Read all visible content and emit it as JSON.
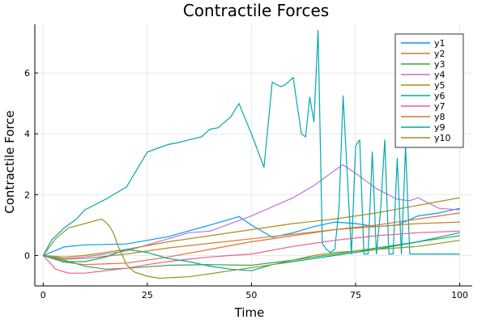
{
  "colors": {
    "y1": "#009af9",
    "y2": "#e26f46",
    "y3": "#3da44d",
    "y4": "#c271d2",
    "y5": "#ac8e18",
    "y6": "#00a9ad",
    "y7": "#ed5e93",
    "y8": "#c68225",
    "y9": "#00a98d",
    "y10": "#8e971e"
  },
  "chart_data": {
    "type": "line",
    "title": "Contractile Forces",
    "xlabel": "Time",
    "ylabel": "Contractile Force",
    "xlim": [
      -2,
      103
    ],
    "ylim": [
      -1.0,
      7.6
    ],
    "xticks": [
      0,
      25,
      50,
      75,
      100
    ],
    "yticks": [
      0,
      2,
      4,
      6
    ],
    "grid": true,
    "legend_position": "top-right",
    "series": [
      {
        "name": "y1",
        "color": "#009af9",
        "x": [
          0,
          5,
          10,
          20,
          30,
          40,
          47,
          50,
          55,
          60,
          65,
          70,
          75,
          80,
          85,
          90,
          95,
          100
        ],
        "y": [
          0,
          0.28,
          0.35,
          0.38,
          0.62,
          1.0,
          1.28,
          1.0,
          0.6,
          0.75,
          0.95,
          1.1,
          1.05,
          0.95,
          1.0,
          1.3,
          1.4,
          1.55
        ]
      },
      {
        "name": "y2",
        "color": "#e26f46",
        "x": [
          0,
          5,
          10,
          20,
          30,
          40,
          50,
          60,
          70,
          80,
          90,
          100
        ],
        "y": [
          0,
          -0.22,
          -0.3,
          -0.25,
          -0.05,
          0.2,
          0.45,
          0.65,
          0.85,
          1.0,
          1.2,
          1.4
        ]
      },
      {
        "name": "y3",
        "color": "#3da44d",
        "x": [
          0,
          5,
          10,
          15,
          20,
          30,
          40,
          50,
          60,
          70,
          80,
          90,
          95,
          100
        ],
        "y": [
          0,
          -0.15,
          -0.35,
          -0.45,
          -0.42,
          -0.32,
          -0.3,
          -0.32,
          -0.15,
          0.05,
          0.25,
          0.45,
          0.55,
          0.65
        ]
      },
      {
        "name": "y4",
        "color": "#c271d2",
        "x": [
          0,
          5,
          10,
          20,
          30,
          35,
          40,
          50,
          60,
          65,
          70,
          72,
          75,
          80,
          85,
          88,
          90,
          95,
          100
        ],
        "y": [
          0,
          -0.1,
          -0.05,
          0.15,
          0.55,
          0.75,
          0.8,
          1.3,
          1.9,
          2.3,
          2.8,
          2.98,
          2.7,
          2.2,
          1.85,
          1.8,
          1.9,
          1.55,
          1.5
        ]
      },
      {
        "name": "y5",
        "color": "#ac8e18",
        "x": [
          0,
          5,
          10,
          20,
          30,
          40,
          50,
          60,
          70,
          80,
          90,
          100
        ],
        "y": [
          0,
          -0.05,
          0.0,
          0.2,
          0.45,
          0.65,
          0.85,
          1.05,
          1.2,
          1.4,
          1.65,
          1.9
        ]
      },
      {
        "name": "y6",
        "color": "#00a9ad",
        "x": [
          0,
          2,
          5,
          8,
          10,
          15,
          20,
          25,
          27,
          30,
          32,
          35,
          38,
          40,
          42,
          45,
          47,
          50,
          53,
          55,
          57,
          58,
          60,
          62,
          63,
          64,
          65,
          66,
          67,
          68,
          69,
          70,
          71,
          72,
          74,
          75,
          76,
          77,
          78,
          79,
          80,
          81,
          82,
          83,
          84,
          85,
          86,
          87,
          88,
          90,
          95,
          100
        ],
        "y": [
          0,
          0.5,
          0.9,
          1.2,
          1.5,
          1.85,
          2.25,
          3.4,
          3.5,
          3.65,
          3.7,
          3.8,
          3.9,
          4.15,
          4.2,
          4.55,
          5.0,
          4.0,
          2.9,
          5.7,
          5.55,
          5.6,
          5.85,
          4.0,
          3.9,
          5.2,
          4.4,
          7.4,
          0.4,
          0.2,
          0.1,
          0.2,
          1.5,
          5.25,
          0.05,
          3.6,
          3.8,
          0.05,
          0.05,
          3.4,
          0.05,
          1.5,
          3.8,
          0.05,
          0.05,
          3.2,
          0.05,
          3.6,
          0.05,
          0.05,
          0.05,
          0.05
        ]
      },
      {
        "name": "y7",
        "color": "#ed5e93",
        "x": [
          0,
          3,
          6,
          10,
          15,
          20,
          25,
          30,
          35,
          40,
          45,
          50,
          60,
          70,
          80,
          90,
          100
        ],
        "y": [
          0,
          -0.45,
          -0.58,
          -0.58,
          -0.5,
          -0.42,
          -0.3,
          -0.2,
          -0.12,
          -0.05,
          0.0,
          0.05,
          0.3,
          0.5,
          0.65,
          0.75,
          0.8
        ]
      },
      {
        "name": "y8",
        "color": "#c68225",
        "x": [
          0,
          5,
          10,
          20,
          30,
          40,
          50,
          60,
          70,
          80,
          90,
          100
        ],
        "y": [
          0,
          -0.12,
          -0.1,
          0.05,
          0.25,
          0.4,
          0.55,
          0.7,
          0.85,
          0.95,
          1.05,
          1.1
        ]
      },
      {
        "name": "y9",
        "color": "#00a98d",
        "x": [
          0,
          5,
          10,
          15,
          20,
          25,
          30,
          35,
          40,
          45,
          50,
          55,
          60,
          70,
          80,
          90,
          95,
          100
        ],
        "y": [
          0,
          -0.2,
          -0.2,
          -0.05,
          0.2,
          0.1,
          -0.1,
          -0.2,
          -0.35,
          -0.45,
          -0.5,
          -0.3,
          -0.2,
          0.0,
          0.2,
          0.45,
          0.6,
          0.75
        ]
      },
      {
        "name": "y10",
        "color": "#8e971e",
        "x": [
          0,
          3,
          6,
          10,
          14,
          15,
          16,
          17,
          18,
          19,
          20,
          22,
          25,
          28,
          30,
          35,
          40,
          45,
          50,
          55,
          60,
          65,
          70,
          75,
          80,
          90,
          100
        ],
        "y": [
          0,
          0.55,
          0.9,
          1.05,
          1.2,
          1.1,
          0.95,
          0.7,
          0.3,
          0.0,
          -0.3,
          -0.55,
          -0.68,
          -0.75,
          -0.73,
          -0.7,
          -0.6,
          -0.5,
          -0.4,
          -0.3,
          -0.15,
          0.0,
          0.1,
          0.15,
          0.2,
          0.3,
          0.5
        ]
      }
    ]
  }
}
